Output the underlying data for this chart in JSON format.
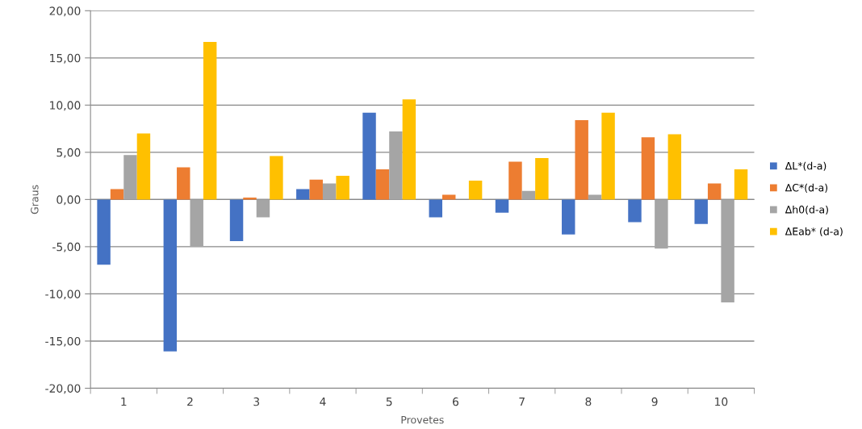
{
  "chart_data": {
    "type": "bar",
    "xlabel": "Provetes",
    "ylabel": "Graus",
    "categories": [
      "1",
      "2",
      "3",
      "4",
      "5",
      "6",
      "7",
      "8",
      "9",
      "10"
    ],
    "series": [
      {
        "name": "ΔL*(d-a)",
        "color": "#4472c4",
        "values": [
          -6.9,
          -16.1,
          -4.4,
          1.1,
          9.2,
          -1.9,
          -1.4,
          -3.7,
          -2.4,
          -2.6
        ]
      },
      {
        "name": "ΔC*(d-a)",
        "color": "#ed7d31",
        "values": [
          1.1,
          3.4,
          0.2,
          2.1,
          3.2,
          0.5,
          4.0,
          8.4,
          6.6,
          1.7
        ]
      },
      {
        "name": "Δh0(d-a)",
        "color": "#a5a5a5",
        "values": [
          4.7,
          -5.0,
          -1.9,
          1.7,
          7.2,
          0.0,
          0.9,
          0.5,
          -5.2,
          -10.9
        ]
      },
      {
        "name": "ΔEab* (d-a)",
        "color": "#ffc000",
        "values": [
          7.0,
          16.7,
          4.6,
          2.5,
          10.6,
          2.0,
          4.4,
          9.2,
          6.9,
          3.2
        ]
      }
    ],
    "ylim": [
      -20,
      20
    ],
    "yticks": [
      {
        "value": -20,
        "label": "-20,00"
      },
      {
        "value": -15,
        "label": "-15,00"
      },
      {
        "value": -10,
        "label": "-10,00"
      },
      {
        "value": -5,
        "label": "-5,00"
      },
      {
        "value": 0,
        "label": "0,00"
      },
      {
        "value": 5,
        "label": "5,00"
      },
      {
        "value": 10,
        "label": "10,00"
      },
      {
        "value": 15,
        "label": "15,00"
      },
      {
        "value": 20,
        "label": "20,00"
      }
    ],
    "grid": "y",
    "legend": "right"
  }
}
